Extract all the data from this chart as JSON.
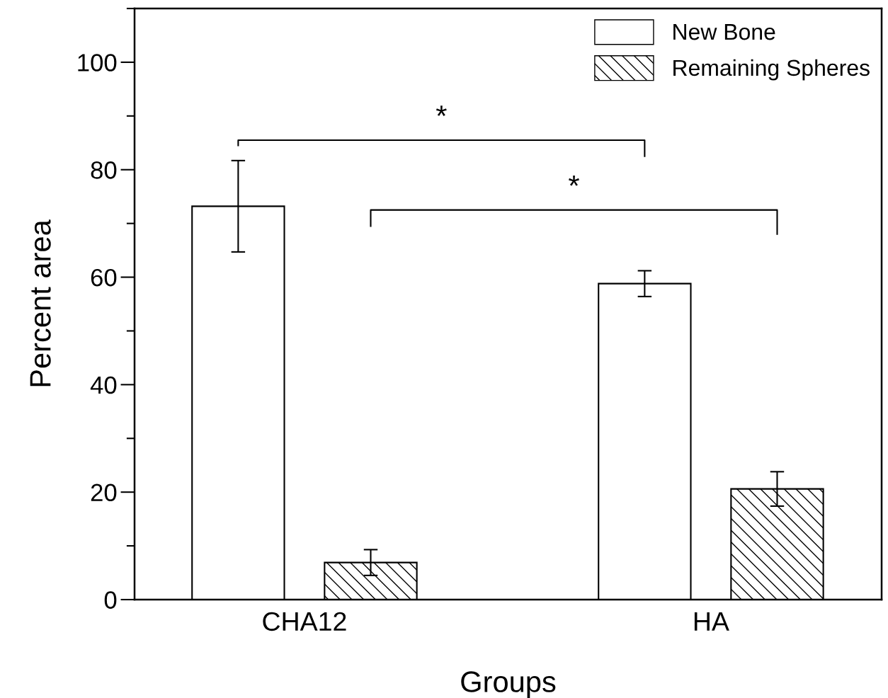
{
  "chart_data": {
    "type": "bar",
    "xlabel": "Groups",
    "ylabel": "Percent area",
    "categories": [
      "CHA12",
      "HA"
    ],
    "series": [
      {
        "name": "New Bone",
        "color": "#000000",
        "values": [
          73.2,
          58.8
        ],
        "errors": [
          8.5,
          2.4
        ]
      },
      {
        "name": "Remaining Spheres",
        "color": "#000000",
        "values": [
          6.9,
          20.6
        ],
        "errors": [
          2.4,
          3.2
        ]
      }
    ],
    "ylim": [
      0,
      110
    ],
    "yticks": [
      0,
      20,
      40,
      60,
      80,
      100
    ],
    "legend": "top right",
    "annotations": [
      "*",
      "*"
    ]
  }
}
